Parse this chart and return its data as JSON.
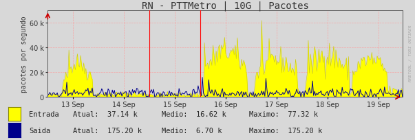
{
  "title": "RN - PTTMetro | 10G | Pacotes",
  "ylabel": "pacotes por segundo",
  "bg_color": "#d8d8d8",
  "plot_bg_color": "#d8d8d8",
  "grid_color": "#ff9999",
  "entrada_fill_color": "#ffff00",
  "entrada_line_color": "#cccc00",
  "saida_line_color": "#00008b",
  "x_tick_labels": [
    "13 Sep",
    "14 Sep",
    "15 Sep",
    "16 Sep",
    "17 Sep",
    "18 Sep",
    "19 Sep"
  ],
  "ylim": [
    0,
    70000
  ],
  "yticks": [
    0,
    20000,
    40000,
    60000
  ],
  "arrow_color": "#cc0000",
  "watermark": "RRDTOOL / TOBI OETIKER",
  "legend_entrada_label": "Entrada",
  "legend_saida_label": "Saida",
  "legend_entrada_atual": "37.14 k",
  "legend_entrada_medio": "16.62 k",
  "legend_entrada_maximo": "77.32 k",
  "legend_saida_atual": "175.20 k",
  "legend_saida_medio": "6.70 k",
  "legend_saida_maximo": "175.20 k",
  "num_points": 336,
  "title_fontsize": 10,
  "tick_fontsize": 7,
  "legend_fontsize": 7.5,
  "ylabel_fontsize": 7
}
